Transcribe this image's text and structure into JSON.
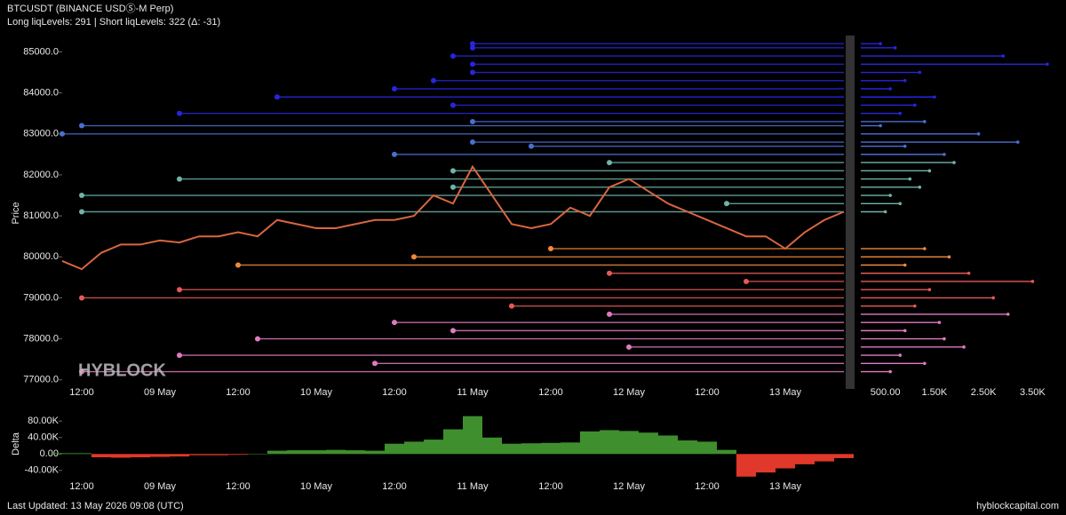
{
  "header": {
    "title": "BTCUSDT (BINANCE USDⓈ-M Perp)",
    "subtitle": "Long liqLevels: 291 | Short liqLevels: 322 (Δ: -31)"
  },
  "watermark": "HYBLOCK",
  "footer": {
    "updated": "Last Updated: 13 May 2026 09:08 (UTC)",
    "site": "hyblockcapital.com"
  },
  "chart_data": [
    {
      "type": "line",
      "ylabel": "Price",
      "color": "#d9663f",
      "categories": [
        null,
        "12:00",
        null,
        null,
        null,
        "09 May",
        null,
        null,
        null,
        "12:00",
        null,
        null,
        null,
        "10 May",
        null,
        null,
        null,
        "12:00",
        null,
        null,
        null,
        "11 May",
        null,
        null,
        null,
        "12:00",
        null,
        null,
        null,
        "12 May",
        null,
        null,
        null,
        "12:00",
        null,
        null,
        null,
        "13 May",
        null,
        null,
        null
      ],
      "values": [
        79900,
        79700,
        80100,
        80300,
        80300,
        80400,
        80350,
        80500,
        80500,
        80600,
        80500,
        80900,
        80800,
        80700,
        80700,
        80800,
        80900,
        80900,
        81000,
        81500,
        81300,
        82200,
        81500,
        80800,
        80700,
        80800,
        81200,
        81000,
        81700,
        81900,
        81600,
        81300,
        81100,
        80900,
        80700,
        80500,
        80500,
        80200,
        80600,
        80900,
        81100
      ],
      "ylim": [
        76800,
        85400
      ],
      "yticks": [
        {
          "value": 77000,
          "label": "77000.0"
        },
        {
          "value": 78000,
          "label": "78000.0"
        },
        {
          "value": 79000,
          "label": "79000.0"
        },
        {
          "value": 80000,
          "label": "80000.0"
        },
        {
          "value": 81000,
          "label": "81000.0"
        },
        {
          "value": 82000,
          "label": "82000.0"
        },
        {
          "value": 83000,
          "label": "83000.0"
        },
        {
          "value": 84000,
          "label": "84000.0"
        },
        {
          "value": 85000,
          "label": "85000.0"
        }
      ],
      "levels": {
        "prices": [
          85200,
          85100,
          84900,
          84700,
          84500,
          84300,
          84100,
          83900,
          83700,
          83500,
          83300,
          83200,
          83000,
          82800,
          82700,
          82500,
          82300,
          82100,
          81900,
          81700,
          81500,
          81300,
          81100,
          80200,
          80000,
          79800,
          79600,
          79400,
          79200,
          79000,
          78800,
          78600,
          78400,
          78200,
          78000,
          77800,
          77600,
          77400,
          77200
        ],
        "starts": [
          21,
          21,
          20,
          21,
          21,
          19,
          17,
          11,
          20,
          6,
          21,
          1,
          0,
          21,
          24,
          17,
          28,
          20,
          6,
          20,
          1,
          34,
          1,
          25,
          18,
          9,
          28,
          35,
          6,
          1,
          23,
          28,
          17,
          20,
          10,
          29,
          6,
          16,
          1
        ],
        "sizes": [
          400,
          700,
          2900,
          3800,
          1200,
          900,
          600,
          1500,
          1100,
          800,
          1300,
          400,
          2400,
          3200,
          900,
          1700,
          1900,
          1400,
          1000,
          1200,
          600,
          800,
          500,
          1300,
          1800,
          900,
          2200,
          3500,
          1400,
          2700,
          1100,
          3000,
          1600,
          900,
          1700,
          2100,
          800,
          1300,
          600
        ]
      }
    },
    {
      "type": "hbar",
      "color": "#b0b0b0",
      "xlim": [
        0,
        4000
      ],
      "xticks": [
        {
          "value": 500,
          "label": "500.00"
        },
        {
          "value": 1500,
          "label": "1.50K"
        },
        {
          "value": 2500,
          "label": "2.50K"
        },
        {
          "value": 3500,
          "label": "3.50K"
        }
      ]
    },
    {
      "type": "area",
      "ylabel": "Delta",
      "color": "#3f8f2e",
      "negative_color": "#e0382a",
      "values": [
        2000,
        2000,
        -8000,
        -9000,
        -8000,
        -7000,
        -6000,
        -3000,
        -3000,
        -2000,
        0,
        8000,
        9000,
        9000,
        10000,
        9000,
        8000,
        25000,
        30000,
        35000,
        60000,
        92000,
        40000,
        25000,
        26000,
        27000,
        28000,
        55000,
        58000,
        56000,
        52000,
        45000,
        33000,
        30000,
        10000,
        -55000,
        -45000,
        -35000,
        -25000,
        -18000,
        -10000
      ],
      "ylim": [
        -62000,
        100000
      ],
      "yticks": [
        {
          "value": -40000,
          "label": "-40.00K"
        },
        {
          "value": 0,
          "label": "0.00"
        },
        {
          "value": 40000,
          "label": "40.00K"
        },
        {
          "value": 80000,
          "label": "80.00K"
        }
      ]
    }
  ]
}
